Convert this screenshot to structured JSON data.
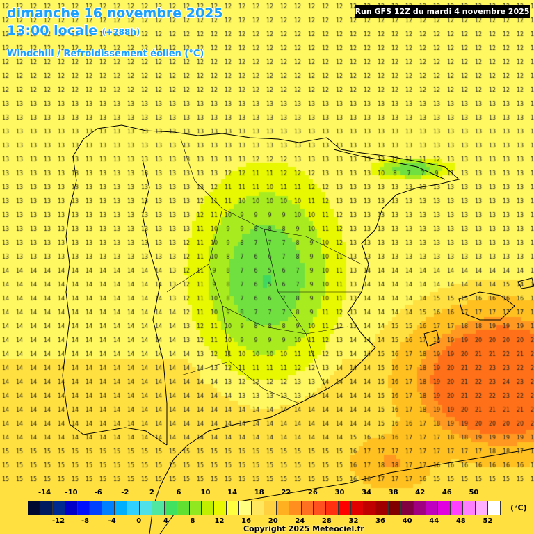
{
  "header": {
    "date": "dimanche 16 novembre 2025",
    "time": "13:00 locale",
    "lead": "(+288h)",
    "variable": "Windchill / Refroidissement éolien (°C)",
    "run": "Run GFS 12Z du mardi 4 novembre 2025"
  },
  "footer": {
    "copyright": "Copyright 2025 Meteociel.fr",
    "unit": "(°C)"
  },
  "legend": {
    "top_labels": [
      "-14",
      "-10",
      "-6",
      "-2",
      "2",
      "6",
      "10",
      "14",
      "18",
      "22",
      "26",
      "30",
      "34",
      "38",
      "42",
      "46",
      "50"
    ],
    "bottom_labels": [
      "-12",
      "-8",
      "-4",
      "0",
      "4",
      "8",
      "12",
      "16",
      "20",
      "24",
      "28",
      "32",
      "36",
      "40",
      "44",
      "48",
      "52"
    ],
    "colors": [
      "#000a30",
      "#001a60",
      "#002a90",
      "#0000c8",
      "#0010ff",
      "#0040ff",
      "#0080ff",
      "#00b0ff",
      "#30d0ff",
      "#50e0e8",
      "#50e8a0",
      "#40e060",
      "#60e030",
      "#90e820",
      "#c0f000",
      "#e8f800",
      "#ffff40",
      "#ffff80",
      "#ffe860",
      "#ffd040",
      "#ffb020",
      "#ff9020",
      "#ff7020",
      "#ff5020",
      "#ff3010",
      "#ff0000",
      "#e00000",
      "#c00000",
      "#a00000",
      "#800000",
      "#800040",
      "#a00080",
      "#c000c0",
      "#e000e0",
      "#ff40ff",
      "#ff80ff",
      "#ffb0ff",
      "#ffffff"
    ]
  }
}
